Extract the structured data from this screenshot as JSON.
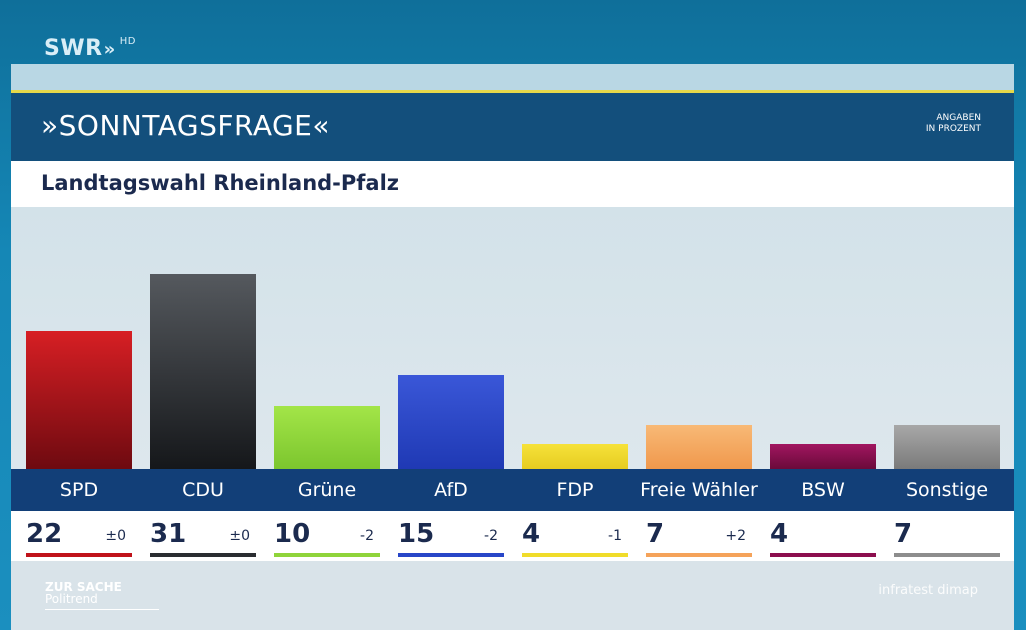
{
  "logo": {
    "text": "SWR",
    "arrows": "»",
    "hd": "HD"
  },
  "header": {
    "title": "»SONNTAGSFRAGE«",
    "note_line1": "ANGABEN",
    "note_line2": "IN PROZENT"
  },
  "subtitle": "Landtagswahl Rheinland-Pfalz",
  "chart_data": {
    "type": "bar",
    "categories": [
      "SPD",
      "CDU",
      "Grüne",
      "AfD",
      "FDP",
      "Freie Wähler",
      "BSW",
      "Sonstige"
    ],
    "values": [
      22,
      31,
      10,
      15,
      4,
      7,
      4,
      7
    ],
    "value_labels": [
      "22",
      "31",
      "10",
      "15",
      "4",
      "7",
      "4",
      "7"
    ],
    "changes": [
      "±0",
      "±0",
      "-2",
      "-2",
      "-1",
      "+2",
      "",
      ""
    ],
    "colors": [
      "#c0121a",
      "#2a2d31",
      "#8fd43a",
      "#2846c8",
      "#f0dc2a",
      "#f5a35a",
      "#8c0e4e",
      "#8d8d8d"
    ],
    "bar_top_colors": [
      "#d71f24",
      "#55595e",
      "#a3e548",
      "#3a57d8",
      "#f6e23a",
      "#f8b976",
      "#a11660",
      "#a8a8a8"
    ],
    "bar_bottom_colors": [
      "#6e0a10",
      "#15171a",
      "#7cc62e",
      "#1f39b4",
      "#e6cc20",
      "#f0984c",
      "#6a0a3a",
      "#7a7a7a"
    ],
    "ylim": [
      0,
      36
    ]
  },
  "footer": {
    "show_line1": "ZUR SACHE",
    "show_line2": "Politrend",
    "source": "infratest dimap"
  }
}
